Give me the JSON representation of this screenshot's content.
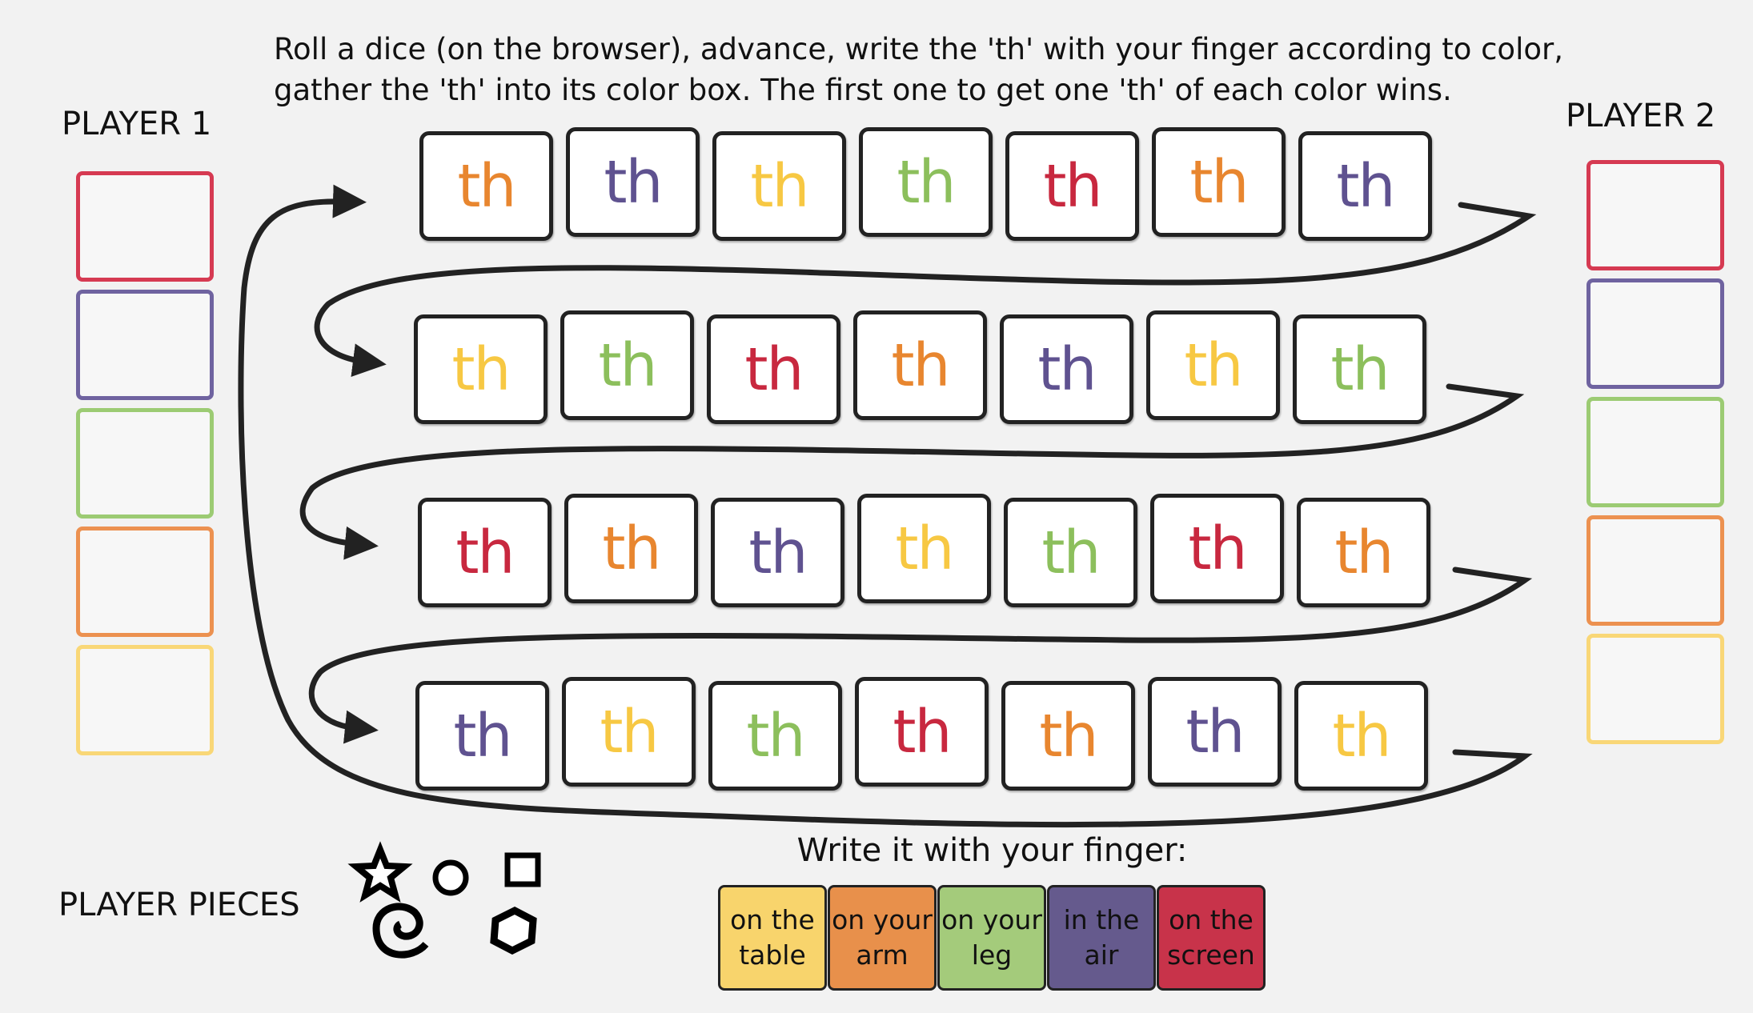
{
  "instructions": {
    "line1": "Roll a dice (on the browser), advance, write the 'th' with your finger according to color,",
    "line2": "gather the 'th' into its color box.  The first one to get one 'th' of each color wins."
  },
  "colors": {
    "red": "#c8283f",
    "purple": "#5f5290",
    "green": "#8cbf5c",
    "orange": "#e8862f",
    "yellow": "#f7c843"
  },
  "box_colors": {
    "red": "#d63a52",
    "purple": "#6f63a0",
    "green": "#9ccb73",
    "orange": "#ec9150",
    "yellow": "#f9d777"
  },
  "player1": {
    "label": "PLAYER 1",
    "boxes": [
      "red",
      "purple",
      "green",
      "orange",
      "yellow"
    ]
  },
  "player2": {
    "label": "PLAYER 2",
    "boxes": [
      "red",
      "purple",
      "green",
      "orange",
      "yellow"
    ]
  },
  "board": {
    "tile_text": "th",
    "rows": [
      [
        "orange",
        "purple",
        "yellow",
        "green",
        "red",
        "orange",
        "purple"
      ],
      [
        "yellow",
        "green",
        "red",
        "orange",
        "purple",
        "yellow",
        "green"
      ],
      [
        "red",
        "orange",
        "purple",
        "yellow",
        "green",
        "red",
        "orange"
      ],
      [
        "purple",
        "yellow",
        "green",
        "red",
        "orange",
        "purple",
        "yellow"
      ]
    ]
  },
  "pieces": {
    "label": "PLAYER PIECES",
    "icons": [
      "star-icon",
      "circle-icon",
      "square-icon",
      "spiral-icon",
      "hexagon-icon"
    ]
  },
  "write": {
    "title": "Write it with your finger:",
    "options": [
      {
        "line1": "on the",
        "line2": "table",
        "color": "#f8d46c"
      },
      {
        "line1": "on your",
        "line2": "arm",
        "color": "#e8904b"
      },
      {
        "line1": "on your",
        "line2": "leg",
        "color": "#a4cb7b"
      },
      {
        "line1": "in the",
        "line2": "air",
        "color": "#655a8d"
      },
      {
        "line1": "on the",
        "line2": "screen",
        "color": "#c8334a"
      }
    ]
  }
}
